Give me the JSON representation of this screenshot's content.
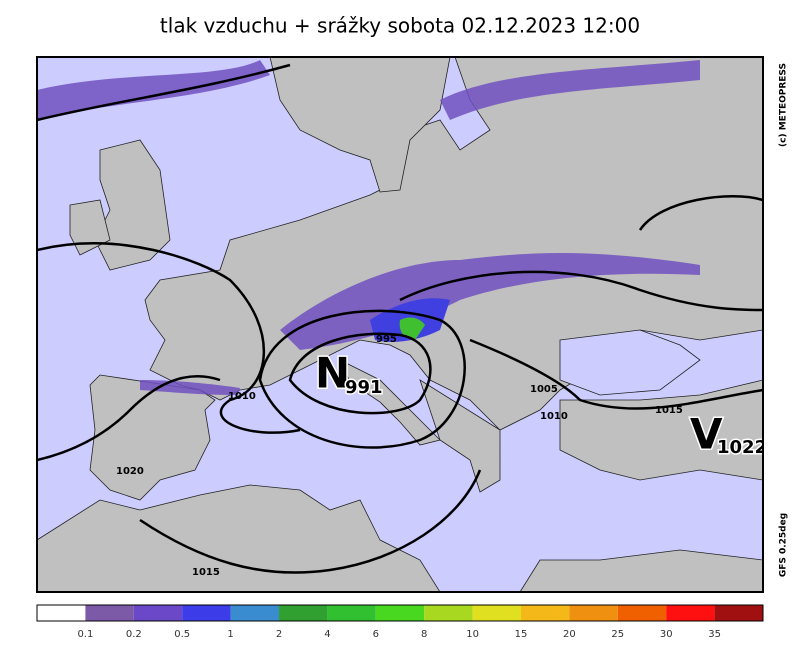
{
  "title": "tlak vzduchu + srážky  sobota 02.12.2023 12:00",
  "credit": "(c) METEOPRESS",
  "model": "GFS 0.25deg",
  "centers": [
    {
      "letter": "N",
      "value": 991
    },
    {
      "letter": "V",
      "value": 1022
    }
  ],
  "isobar_labels": [
    995,
    1005,
    1010,
    1010,
    1015,
    1020,
    1015
  ],
  "legend": {
    "colors": [
      "#ffffff",
      "#7c5aa8",
      "#6a48c8",
      "#3c3ce8",
      "#3a8cd0",
      "#30a030",
      "#30c030",
      "#48d820",
      "#a8d820",
      "#e0e020",
      "#f4b818",
      "#f09010",
      "#f06000",
      "#ff1010",
      "#a01010"
    ],
    "labels": [
      0.1,
      0.2,
      0.5,
      1,
      2,
      4,
      6,
      8,
      10,
      15,
      20,
      25,
      30,
      35
    ]
  }
}
